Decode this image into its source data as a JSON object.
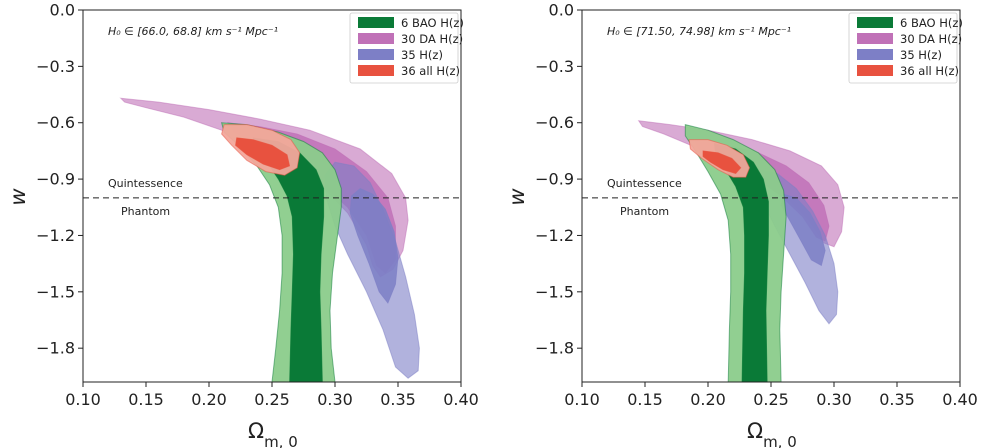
{
  "chart_data": [
    {
      "type": "contour",
      "annotation": "H₀ ∈ [66.0, 68.8] km s⁻¹ Mpc⁻¹",
      "xlabel": "Ω_{m,0}",
      "ylabel": "w",
      "xlim": [
        0.1,
        0.4
      ],
      "ylim": [
        -1.98,
        0.0
      ],
      "x_ticks": [
        "0.10",
        "0.15",
        "0.20",
        "0.25",
        "0.30",
        "0.35",
        "0.40"
      ],
      "y_ticks": [
        "0.0",
        "−0.3",
        "−0.6",
        "−0.9",
        "−1.2",
        "−1.5",
        "−1.8"
      ],
      "reference_line": {
        "y": -1.0,
        "above_label": "Quintessence",
        "below_label": "Phantom"
      },
      "legend_position": "top-right",
      "series": [
        {
          "name": "30 DA H(z)",
          "color": "#c071b7",
          "outer": [
            [
              0.13,
              -0.47
            ],
            [
              0.16,
              -0.49
            ],
            [
              0.2,
              -0.53
            ],
            [
              0.24,
              -0.58
            ],
            [
              0.28,
              -0.64
            ],
            [
              0.32,
              -0.74
            ],
            [
              0.345,
              -0.87
            ],
            [
              0.356,
              -1.0
            ],
            [
              0.358,
              -1.12
            ],
            [
              0.354,
              -1.28
            ],
            [
              0.346,
              -1.38
            ],
            [
              0.336,
              -1.42
            ],
            [
              0.33,
              -1.36
            ],
            [
              0.325,
              -1.25
            ],
            [
              0.31,
              -1.08
            ],
            [
              0.29,
              -0.94
            ],
            [
              0.27,
              -0.84
            ],
            [
              0.245,
              -0.74
            ],
            [
              0.21,
              -0.64
            ],
            [
              0.18,
              -0.57
            ],
            [
              0.15,
              -0.52
            ],
            [
              0.133,
              -0.49
            ]
          ],
          "inner": [
            [
              0.215,
              -0.6
            ],
            [
              0.24,
              -0.62
            ],
            [
              0.27,
              -0.66
            ],
            [
              0.3,
              -0.74
            ],
            [
              0.325,
              -0.86
            ],
            [
              0.342,
              -1.0
            ],
            [
              0.348,
              -1.15
            ],
            [
              0.348,
              -1.33
            ],
            [
              0.34,
              -1.4
            ],
            [
              0.333,
              -1.36
            ],
            [
              0.325,
              -1.2
            ],
            [
              0.31,
              -1.05
            ],
            [
              0.29,
              -0.93
            ],
            [
              0.265,
              -0.82
            ],
            [
              0.24,
              -0.72
            ],
            [
              0.22,
              -0.65
            ]
          ]
        },
        {
          "name": "35 H(z)",
          "color": "#7d7fc6",
          "outer": [
            [
              0.3,
              -0.81
            ],
            [
              0.315,
              -0.83
            ],
            [
              0.328,
              -0.92
            ],
            [
              0.338,
              -1.06
            ],
            [
              0.348,
              -1.23
            ],
            [
              0.356,
              -1.42
            ],
            [
              0.363,
              -1.62
            ],
            [
              0.367,
              -1.8
            ],
            [
              0.366,
              -1.92
            ],
            [
              0.358,
              -1.96
            ],
            [
              0.348,
              -1.9
            ],
            [
              0.338,
              -1.7
            ],
            [
              0.325,
              -1.5
            ],
            [
              0.31,
              -1.3
            ],
            [
              0.3,
              -1.15
            ],
            [
              0.293,
              -1.0
            ],
            [
              0.292,
              -0.88
            ]
          ],
          "inner": [
            [
              0.32,
              -0.95
            ],
            [
              0.33,
              -0.98
            ],
            [
              0.34,
              -1.06
            ],
            [
              0.347,
              -1.18
            ],
            [
              0.35,
              -1.32
            ],
            [
              0.348,
              -1.46
            ],
            [
              0.342,
              -1.56
            ],
            [
              0.335,
              -1.5
            ],
            [
              0.327,
              -1.35
            ],
            [
              0.318,
              -1.2
            ],
            [
              0.312,
              -1.08
            ],
            [
              0.313,
              -0.99
            ]
          ]
        },
        {
          "name": "6 BAO H(z)",
          "color": "#0a7a37",
          "outer_color": "#8bcc8b",
          "outer": [
            [
              0.21,
              -0.6
            ],
            [
              0.23,
              -0.61
            ],
            [
              0.255,
              -0.65
            ],
            [
              0.275,
              -0.7
            ],
            [
              0.29,
              -0.76
            ],
            [
              0.3,
              -0.85
            ],
            [
              0.305,
              -0.95
            ],
            [
              0.305,
              -1.05
            ],
            [
              0.302,
              -1.2
            ],
            [
              0.298,
              -1.4
            ],
            [
              0.296,
              -1.6
            ],
            [
              0.297,
              -1.8
            ],
            [
              0.3,
              -1.98
            ],
            [
              0.25,
              -1.98
            ],
            [
              0.253,
              -1.8
            ],
            [
              0.256,
              -1.6
            ],
            [
              0.258,
              -1.4
            ],
            [
              0.258,
              -1.2
            ],
            [
              0.255,
              -1.05
            ],
            [
              0.248,
              -0.93
            ],
            [
              0.238,
              -0.83
            ],
            [
              0.225,
              -0.73
            ],
            [
              0.212,
              -0.65
            ]
          ],
          "inner": [
            [
              0.235,
              -0.68
            ],
            [
              0.255,
              -0.7
            ],
            [
              0.272,
              -0.76
            ],
            [
              0.285,
              -0.85
            ],
            [
              0.291,
              -0.95
            ],
            [
              0.291,
              -1.1
            ],
            [
              0.289,
              -1.3
            ],
            [
              0.288,
              -1.5
            ],
            [
              0.289,
              -1.7
            ],
            [
              0.29,
              -1.98
            ],
            [
              0.264,
              -1.98
            ],
            [
              0.265,
              -1.7
            ],
            [
              0.266,
              -1.5
            ],
            [
              0.267,
              -1.3
            ],
            [
              0.266,
              -1.1
            ],
            [
              0.262,
              -0.99
            ],
            [
              0.255,
              -0.9
            ],
            [
              0.245,
              -0.8
            ],
            [
              0.237,
              -0.73
            ]
          ]
        },
        {
          "name": "36 all H(z)",
          "color": "#e8523f",
          "outer_color": "#f3a79b",
          "outer": [
            [
              0.212,
              -0.61
            ],
            [
              0.23,
              -0.61
            ],
            [
              0.25,
              -0.64
            ],
            [
              0.265,
              -0.69
            ],
            [
              0.272,
              -0.76
            ],
            [
              0.27,
              -0.84
            ],
            [
              0.26,
              -0.88
            ],
            [
              0.245,
              -0.86
            ],
            [
              0.23,
              -0.8
            ],
            [
              0.218,
              -0.72
            ],
            [
              0.21,
              -0.66
            ]
          ],
          "inner": [
            [
              0.222,
              -0.68
            ],
            [
              0.235,
              -0.69
            ],
            [
              0.25,
              -0.72
            ],
            [
              0.262,
              -0.77
            ],
            [
              0.264,
              -0.83
            ],
            [
              0.256,
              -0.85
            ],
            [
              0.243,
              -0.82
            ],
            [
              0.23,
              -0.77
            ],
            [
              0.221,
              -0.72
            ]
          ]
        }
      ]
    },
    {
      "type": "contour",
      "annotation": "H₀ ∈ [71.50, 74.98] km s⁻¹ Mpc⁻¹",
      "xlabel": "Ω_{m,0}",
      "ylabel": "w",
      "xlim": [
        0.1,
        0.4
      ],
      "ylim": [
        -1.98,
        0.0
      ],
      "x_ticks": [
        "0.10",
        "0.15",
        "0.20",
        "0.25",
        "0.30",
        "0.35",
        "0.40"
      ],
      "y_ticks": [
        "0.0",
        "−0.3",
        "−0.6",
        "−0.9",
        "−1.2",
        "−1.5",
        "−1.8"
      ],
      "reference_line": {
        "y": -1.0,
        "above_label": "Quintessence",
        "below_label": "Phantom"
      },
      "legend_position": "top-right",
      "series": [
        {
          "name": "30 DA H(z)",
          "color": "#c071b7",
          "outer": [
            [
              0.145,
              -0.59
            ],
            [
              0.17,
              -0.61
            ],
            [
              0.2,
              -0.64
            ],
            [
              0.235,
              -0.69
            ],
            [
              0.265,
              -0.75
            ],
            [
              0.29,
              -0.83
            ],
            [
              0.303,
              -0.93
            ],
            [
              0.308,
              -1.05
            ],
            [
              0.306,
              -1.18
            ],
            [
              0.3,
              -1.26
            ],
            [
              0.292,
              -1.24
            ],
            [
              0.28,
              -1.12
            ],
            [
              0.262,
              -1.0
            ],
            [
              0.24,
              -0.9
            ],
            [
              0.215,
              -0.81
            ],
            [
              0.19,
              -0.73
            ],
            [
              0.165,
              -0.66
            ],
            [
              0.148,
              -0.62
            ]
          ],
          "inner": [
            [
              0.19,
              -0.7
            ],
            [
              0.215,
              -0.72
            ],
            [
              0.24,
              -0.76
            ],
            [
              0.262,
              -0.83
            ],
            [
              0.28,
              -0.92
            ],
            [
              0.292,
              -1.04
            ],
            [
              0.296,
              -1.15
            ],
            [
              0.293,
              -1.23
            ],
            [
              0.286,
              -1.21
            ],
            [
              0.275,
              -1.1
            ],
            [
              0.258,
              -0.99
            ],
            [
              0.235,
              -0.88
            ],
            [
              0.21,
              -0.79
            ],
            [
              0.193,
              -0.74
            ]
          ]
        },
        {
          "name": "35 H(z)",
          "color": "#7d7fc6",
          "outer": [
            [
              0.24,
              -0.85
            ],
            [
              0.255,
              -0.87
            ],
            [
              0.27,
              -0.95
            ],
            [
              0.283,
              -1.07
            ],
            [
              0.293,
              -1.2
            ],
            [
              0.3,
              -1.35
            ],
            [
              0.303,
              -1.5
            ],
            [
              0.302,
              -1.62
            ],
            [
              0.296,
              -1.67
            ],
            [
              0.288,
              -1.6
            ],
            [
              0.277,
              -1.45
            ],
            [
              0.265,
              -1.3
            ],
            [
              0.253,
              -1.15
            ],
            [
              0.243,
              -1.02
            ],
            [
              0.238,
              -0.92
            ]
          ],
          "inner": [
            [
              0.26,
              -0.98
            ],
            [
              0.27,
              -1.0
            ],
            [
              0.281,
              -1.08
            ],
            [
              0.289,
              -1.18
            ],
            [
              0.293,
              -1.28
            ],
            [
              0.29,
              -1.36
            ],
            [
              0.282,
              -1.33
            ],
            [
              0.273,
              -1.22
            ],
            [
              0.264,
              -1.11
            ],
            [
              0.258,
              -1.04
            ]
          ]
        },
        {
          "name": "6 BAO H(z)",
          "color": "#0a7a37",
          "outer_color": "#8bcc8b",
          "outer": [
            [
              0.182,
              -0.61
            ],
            [
              0.2,
              -0.64
            ],
            [
              0.22,
              -0.69
            ],
            [
              0.24,
              -0.76
            ],
            [
              0.253,
              -0.85
            ],
            [
              0.26,
              -0.96
            ],
            [
              0.262,
              -1.1
            ],
            [
              0.26,
              -1.3
            ],
            [
              0.258,
              -1.5
            ],
            [
              0.257,
              -1.7
            ],
            [
              0.258,
              -1.98
            ],
            [
              0.216,
              -1.98
            ],
            [
              0.217,
              -1.7
            ],
            [
              0.218,
              -1.5
            ],
            [
              0.218,
              -1.3
            ],
            [
              0.216,
              -1.12
            ],
            [
              0.21,
              -0.98
            ],
            [
              0.2,
              -0.86
            ],
            [
              0.19,
              -0.75
            ],
            [
              0.182,
              -0.67
            ]
          ],
          "inner": [
            [
              0.205,
              -0.71
            ],
            [
              0.222,
              -0.74
            ],
            [
              0.236,
              -0.81
            ],
            [
              0.244,
              -0.9
            ],
            [
              0.248,
              -1.02
            ],
            [
              0.248,
              -1.2
            ],
            [
              0.247,
              -1.4
            ],
            [
              0.246,
              -1.6
            ],
            [
              0.247,
              -1.98
            ],
            [
              0.227,
              -1.98
            ],
            [
              0.228,
              -1.6
            ],
            [
              0.229,
              -1.4
            ],
            [
              0.229,
              -1.2
            ],
            [
              0.228,
              -1.05
            ],
            [
              0.222,
              -0.94
            ],
            [
              0.213,
              -0.84
            ],
            [
              0.206,
              -0.77
            ]
          ]
        },
        {
          "name": "36 all H(z)",
          "color": "#e8523f",
          "outer_color": "#f3a79b",
          "outer": [
            [
              0.185,
              -0.69
            ],
            [
              0.2,
              -0.69
            ],
            [
              0.215,
              -0.72
            ],
            [
              0.228,
              -0.77
            ],
            [
              0.233,
              -0.84
            ],
            [
              0.23,
              -0.89
            ],
            [
              0.22,
              -0.89
            ],
            [
              0.208,
              -0.85
            ],
            [
              0.195,
              -0.79
            ],
            [
              0.186,
              -0.74
            ]
          ],
          "inner": [
            [
              0.196,
              -0.75
            ],
            [
              0.208,
              -0.76
            ],
            [
              0.219,
              -0.79
            ],
            [
              0.226,
              -0.84
            ],
            [
              0.222,
              -0.87
            ],
            [
              0.212,
              -0.85
            ],
            [
              0.202,
              -0.81
            ],
            [
              0.196,
              -0.78
            ]
          ]
        }
      ]
    }
  ]
}
